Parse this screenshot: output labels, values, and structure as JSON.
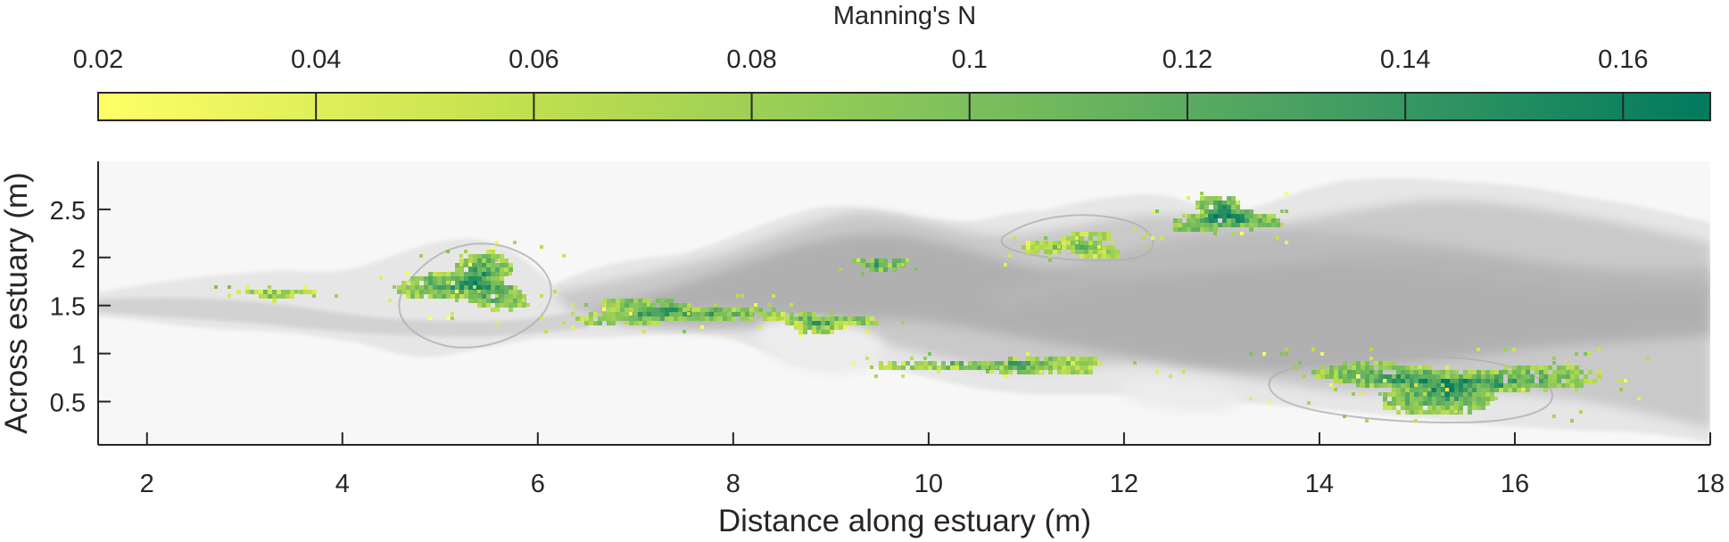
{
  "chart_data": {
    "type": "heatmap",
    "title": "",
    "xlabel": "Distance along estuary (m)",
    "ylabel": "Across estuary (m)",
    "xlim": [
      1.5,
      18
    ],
    "ylim": [
      0.05,
      3.0
    ],
    "xticks": [
      2,
      4,
      6,
      8,
      10,
      12,
      14,
      16,
      18
    ],
    "xtick_labels": [
      "2",
      "4",
      "6",
      "8",
      "10",
      "12",
      "14",
      "16",
      "18"
    ],
    "yticks": [
      0.5,
      1,
      1.5,
      2,
      2.5
    ],
    "ytick_labels": [
      "0.5",
      "1",
      "1.5",
      "2",
      "2.5"
    ],
    "background": "grayscale bathymetry (estuary channel)",
    "colorbar": {
      "label": "Manning's N",
      "location": "top",
      "range": [
        0.02,
        0.168
      ],
      "ticks": [
        0.02,
        0.04,
        0.06,
        0.08,
        0.1,
        0.12,
        0.14,
        0.16
      ],
      "tick_labels": [
        "0.02",
        "0.04",
        "0.06",
        "0.08",
        "0.1",
        "0.12",
        "0.14",
        "0.16"
      ],
      "colormap": [
        "#FFFF66",
        "#C4E14E",
        "#86C55A",
        "#48A062",
        "#007A5E"
      ]
    },
    "vegetation_patches": [
      {
        "x": 3.3,
        "y": 1.65,
        "rx": 0.45,
        "ry": 0.06,
        "n": 0.09
      },
      {
        "x": 5.3,
        "y": 1.75,
        "rx": 0.7,
        "ry": 0.3,
        "n": 0.14
      },
      {
        "x": 7.3,
        "y": 1.45,
        "rx": 1.15,
        "ry": 0.14,
        "n": 0.13
      },
      {
        "x": 8.9,
        "y": 1.35,
        "rx": 0.6,
        "ry": 0.1,
        "n": 0.12
      },
      {
        "x": 9.5,
        "y": 1.95,
        "rx": 0.3,
        "ry": 0.06,
        "n": 0.14
      },
      {
        "x": 10.8,
        "y": 0.9,
        "rx": 1.3,
        "ry": 0.08,
        "n": 0.12
      },
      {
        "x": 11.5,
        "y": 2.15,
        "rx": 0.55,
        "ry": 0.14,
        "n": 0.1
      },
      {
        "x": 13.0,
        "y": 2.45,
        "rx": 0.55,
        "ry": 0.2,
        "n": 0.15
      },
      {
        "x": 15.3,
        "y": 0.7,
        "rx": 1.5,
        "ry": 0.28,
        "n": 0.14
      }
    ]
  }
}
